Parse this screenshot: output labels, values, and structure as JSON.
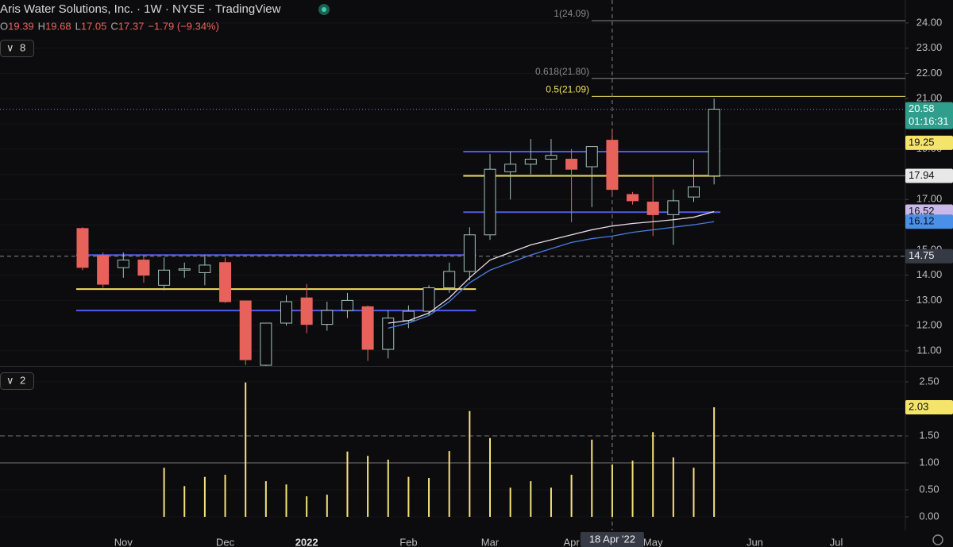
{
  "header": {
    "title": "Aris Water Solutions, Inc. · 1W · NYSE · TradingView",
    "ohlc": [
      [
        "O",
        "19.39"
      ],
      [
        "H",
        "19.68"
      ],
      [
        "L",
        "17.05"
      ],
      [
        "C",
        "17.37"
      ]
    ],
    "change": "−1.79 (−9.34%)",
    "price_pane_button": "8",
    "volume_pane_button": "2"
  },
  "chart_data": [
    {
      "type": "candlestick",
      "categories": [
        null,
        null,
        "Nov",
        null,
        null,
        null,
        null,
        "Dec",
        null,
        null,
        null,
        "2022",
        null,
        null,
        null,
        null,
        "Feb",
        null,
        null,
        null,
        "Mar",
        null,
        null,
        null,
        "Apr",
        null,
        null,
        null,
        "May",
        null,
        null,
        null,
        null,
        "Jun",
        null,
        null,
        null,
        "Jul"
      ],
      "open": [
        15.85,
        14.78,
        14.3,
        14.6,
        13.6,
        14.2,
        14.1,
        14.5,
        12.98,
        10.43,
        12.1,
        13.1,
        12.05,
        12.6,
        12.75,
        11.06,
        12.2,
        12.57,
        13.5,
        14.15,
        15.6,
        18.1,
        18.4,
        18.6,
        18.6,
        18.3,
        19.35,
        17.2,
        16.9,
        16.4,
        17.1,
        17.94,
        null,
        null,
        null,
        null,
        null,
        null
      ],
      "high": [
        15.9,
        14.9,
        14.9,
        14.8,
        14.7,
        14.5,
        14.8,
        14.7,
        13.0,
        12.1,
        13.2,
        13.65,
        12.95,
        13.3,
        12.8,
        12.6,
        12.8,
        13.6,
        14.5,
        15.9,
        18.8,
        18.9,
        19.4,
        19.4,
        19.0,
        19.1,
        19.8,
        17.3,
        17.9,
        17.4,
        18.6,
        21.0,
        null,
        null,
        null,
        null,
        null,
        null
      ],
      "low": [
        14.2,
        13.5,
        13.9,
        13.7,
        13.4,
        13.9,
        13.6,
        12.9,
        10.43,
        10.4,
        12.0,
        11.7,
        11.8,
        12.3,
        10.6,
        10.7,
        11.9,
        12.4,
        13.3,
        13.8,
        15.4,
        17.0,
        18.0,
        18.0,
        16.1,
        16.7,
        17.2,
        16.8,
        15.55,
        15.2,
        16.9,
        17.6,
        null,
        null,
        null,
        null,
        null,
        null
      ],
      "close": [
        14.31,
        13.64,
        14.6,
        14.0,
        14.2,
        14.25,
        14.4,
        12.95,
        10.65,
        12.1,
        12.95,
        12.05,
        12.6,
        13.0,
        11.06,
        12.3,
        12.57,
        13.5,
        14.15,
        15.6,
        18.2,
        18.4,
        18.6,
        18.75,
        18.2,
        19.1,
        17.4,
        16.95,
        16.4,
        16.95,
        17.5,
        20.58,
        null,
        null,
        null,
        null,
        null,
        null
      ],
      "up_color": "#9ec1bb",
      "down_color": "#e8625c",
      "lines": [
        {
          "color": "#e9dbe8",
          "values": [
            null,
            null,
            null,
            null,
            null,
            null,
            null,
            null,
            null,
            null,
            null,
            null,
            null,
            null,
            null,
            12.1,
            12.2,
            12.5,
            13.1,
            13.9,
            14.6,
            14.9,
            15.2,
            15.4,
            15.6,
            15.8,
            15.95,
            16.05,
            16.12,
            16.2,
            16.3,
            16.52,
            null,
            null,
            null,
            null,
            null,
            null
          ]
        },
        {
          "color": "#4a7be0",
          "values": [
            null,
            null,
            null,
            null,
            null,
            null,
            null,
            null,
            null,
            null,
            null,
            null,
            null,
            null,
            null,
            11.9,
            12.1,
            12.4,
            12.95,
            13.7,
            14.2,
            14.5,
            14.8,
            15.05,
            15.3,
            15.45,
            15.55,
            15.7,
            15.8,
            15.9,
            16.0,
            16.12,
            null,
            null,
            null,
            null,
            null,
            null
          ]
        }
      ],
      "tag_colors": [
        "#c9b8e8",
        "#4a8fe8"
      ],
      "levels": [
        {
          "value": 14.8,
          "color": "#4f5be8"
        },
        {
          "value": 13.45,
          "color": "#f0e060"
        },
        {
          "value": 12.6,
          "color": "#4f5be8"
        },
        {
          "value": 18.9,
          "color": "#4f5be8"
        },
        {
          "value": 17.94,
          "color": "#f0e060"
        },
        {
          "value": 16.5,
          "color": "#4f5be8"
        }
      ],
      "fib_levels": [
        {
          "value": 24.09,
          "label": "1(24.09)",
          "color": "#888888"
        },
        {
          "value": 21.8,
          "label": "0.618(21.80)",
          "color": "#888888"
        },
        {
          "value": 21.09,
          "label": "0.5(21.09)",
          "color": "#f0e060"
        }
      ],
      "last_price_countdown": "01:16:31",
      "last_price_color": "#2f9e8c",
      "price_tags": [
        {
          "value": 19.25,
          "color": "#f5e46a"
        },
        {
          "value": 17.94,
          "color": "#e8e8e8"
        }
      ],
      "crosshair": {
        "x_label": "18 Apr '22",
        "y": 14.75
      },
      "ylim": [
        10.4,
        24.91
      ],
      "yticks": [
        {
          "value": 11,
          "label": "11.00"
        },
        {
          "value": 12,
          "label": "12.00"
        },
        {
          "value": 13,
          "label": "13.00"
        },
        {
          "value": 14,
          "label": "14.00"
        },
        {
          "value": 15,
          "label": "15.00"
        },
        {
          "value": 16,
          "label": "16.00"
        },
        {
          "value": 17,
          "label": "17.00"
        },
        {
          "value": 18,
          "label": "18.00"
        },
        {
          "value": 19,
          "label": "19.00"
        },
        {
          "value": 20,
          "label": "20.00"
        },
        {
          "value": 21,
          "label": "21.00"
        },
        {
          "value": 22,
          "label": "22.00"
        },
        {
          "value": 23,
          "label": "23.00"
        },
        {
          "value": 24,
          "label": "24.00"
        }
      ]
    },
    {
      "type": "bar",
      "values": [
        null,
        null,
        null,
        null,
        0.91,
        0.57,
        0.74,
        0.78,
        2.49,
        0.66,
        0.6,
        0.38,
        0.41,
        1.21,
        1.13,
        1.06,
        0.74,
        0.72,
        1.22,
        1.96,
        1.46,
        0.54,
        0.66,
        0.54,
        0.78,
        1.43,
        0.97,
        1.04,
        1.57,
        1.1,
        0.91,
        2.03,
        null,
        null,
        null,
        null,
        null,
        null
      ],
      "color": "#f5e27a",
      "reference_lines": [
        {
          "value": 1.5,
          "style": "dashed"
        },
        {
          "value": 1,
          "style": "solid"
        }
      ],
      "ylim": [
        -0.25,
        2.78
      ],
      "yticks": [
        {
          "value": 0,
          "label": "0.00"
        },
        {
          "value": 0.5,
          "label": "0.50"
        },
        {
          "value": 1,
          "label": "1.00"
        },
        {
          "value": 1.5,
          "label": "1.50"
        },
        {
          "value": 2,
          "label": "2.00"
        },
        {
          "value": 2.5,
          "label": "2.50"
        }
      ]
    }
  ]
}
